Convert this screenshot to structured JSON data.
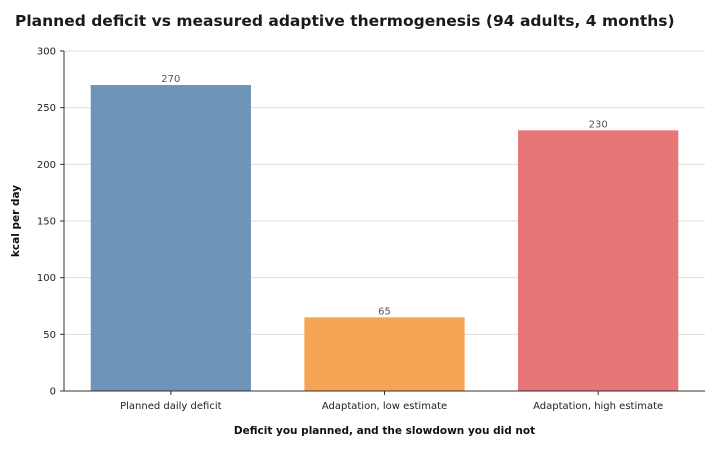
{
  "chart_data": {
    "type": "bar",
    "title": "Planned deficit vs measured adaptive thermogenesis (94 adults, 4 months)",
    "xlabel": "Deficit you planned, and the slowdown you did not",
    "ylabel": "kcal per day",
    "categories": [
      "Planned daily deficit",
      "Adaptation, low estimate",
      "Adaptation, high estimate"
    ],
    "values": [
      270,
      65,
      230
    ],
    "data_labels": [
      "270",
      "65",
      "230"
    ],
    "colors": [
      "#6f94b9",
      "#f5a555",
      "#e87677"
    ],
    "ylim": [
      0,
      300
    ],
    "yticks": [
      0,
      50,
      100,
      150,
      200,
      250,
      300
    ],
    "grid": true,
    "legend": "none"
  }
}
